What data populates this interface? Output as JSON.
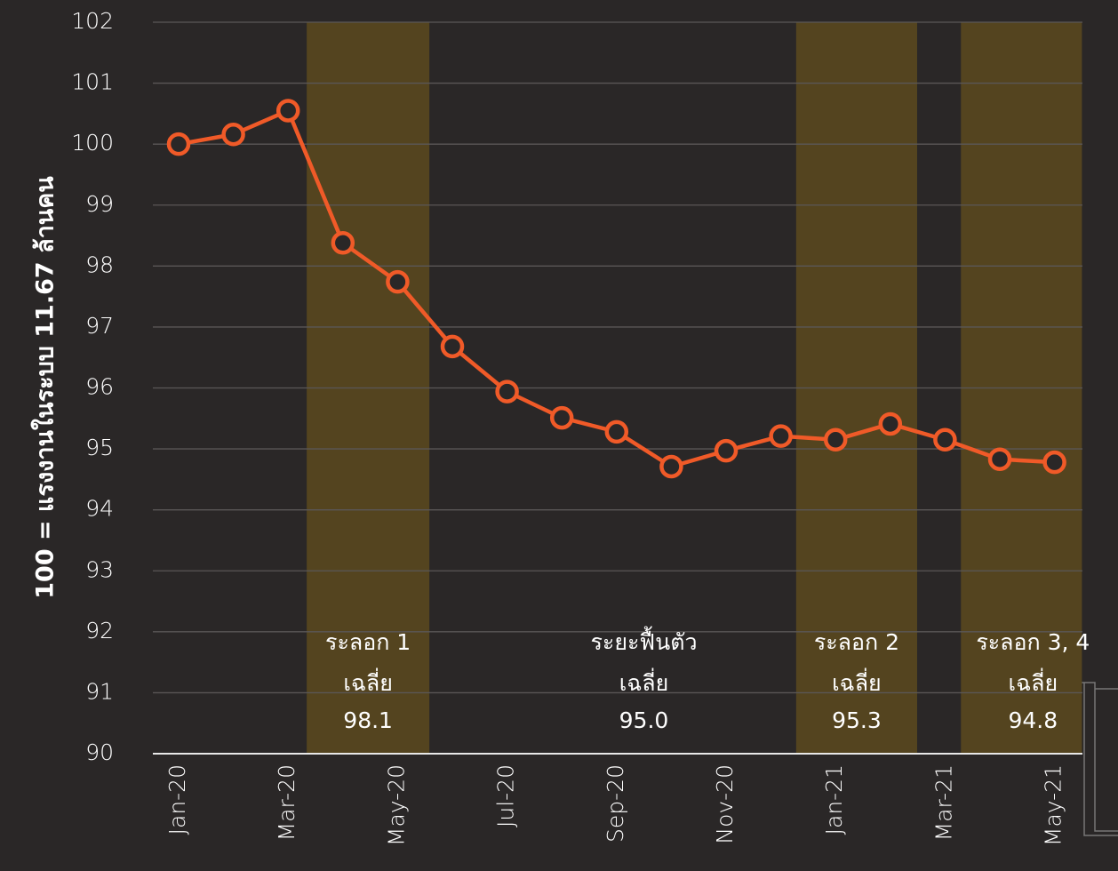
{
  "chart_data": {
    "type": "line",
    "y_label": "100 = แรงงานในระบบ 11.67 ล้านคน",
    "categories": [
      "Jan-20",
      null,
      "Mar-20",
      null,
      "May-20",
      null,
      "Jul-20",
      null,
      "Sep-20",
      null,
      "Nov-20",
      null,
      "Jan-21",
      null,
      "Mar-21",
      null,
      "May-21"
    ],
    "series": [
      {
        "color": "#f05a28",
        "values": [
          100.0,
          100.16,
          100.55,
          98.38,
          97.74,
          96.68,
          95.94,
          95.51,
          95.28,
          94.71,
          94.97,
          95.21,
          95.15,
          95.41,
          95.15,
          94.83,
          94.78
        ]
      }
    ],
    "ylim": [
      90,
      102
    ],
    "yticks": [
      90,
      91,
      92,
      93,
      94,
      95,
      96,
      97,
      98,
      99,
      100,
      101,
      102
    ],
    "grid": true,
    "shaded_regions": {
      "color": "#54441f",
      "spans": [
        [
          2.34,
          4.58
        ],
        [
          11.28,
          13.49
        ],
        [
          14.29,
          16.5
        ]
      ]
    },
    "annotations": [
      {
        "name": "ระลอก 1",
        "subtitle": "เฉลี่ย",
        "value": "98.1"
      },
      {
        "name": "ระยะฟื้นตัว",
        "subtitle": "เฉลี่ย",
        "value": "95.0"
      },
      {
        "name": "ระลอก 2",
        "subtitle": "เฉลี่ย",
        "value": "95.3"
      },
      {
        "name": "ระลอก 3, 4",
        "subtitle": "เฉลี่ย",
        "value": "94.8"
      }
    ]
  }
}
